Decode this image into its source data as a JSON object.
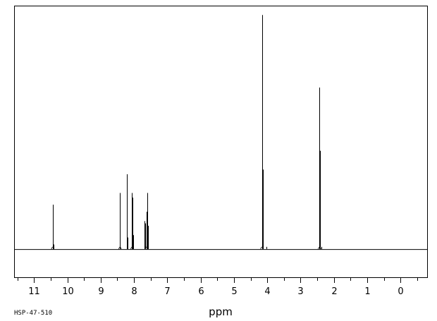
{
  "chart_data": {
    "type": "line",
    "title": "",
    "xlabel": "ppm",
    "ylabel": "",
    "xlim": [
      11.6,
      -0.8
    ],
    "x_reversed": true,
    "ylim": [
      -0.12,
      1.04
    ],
    "grid": false,
    "legend": "none",
    "ticks": {
      "major": [
        11,
        10,
        9,
        8,
        7,
        6,
        5,
        4,
        3,
        2,
        1,
        0
      ],
      "major_labels": [
        "11",
        "10",
        "9",
        "8",
        "7",
        "6",
        "5",
        "4",
        "3",
        "2",
        "1",
        "0"
      ],
      "minor": [
        11.5,
        10.5,
        9.5,
        8.5,
        7.5,
        6.5,
        5.5,
        4.5,
        3.5,
        2.5,
        1.5,
        0.5,
        -0.5
      ]
    },
    "baseline": 0,
    "peaks": [
      {
        "ppm": 10.44,
        "height": 0.19
      },
      {
        "ppm": 10.42,
        "height": 0.02
      },
      {
        "ppm": 8.42,
        "height": 0.24
      },
      {
        "ppm": 8.21,
        "height": 0.32
      },
      {
        "ppm": 8.19,
        "height": 0.05
      },
      {
        "ppm": 8.06,
        "height": 0.24
      },
      {
        "ppm": 8.04,
        "height": 0.22
      },
      {
        "ppm": 8.02,
        "height": 0.06
      },
      {
        "ppm": 7.69,
        "height": 0.12
      },
      {
        "ppm": 7.66,
        "height": 0.11
      },
      {
        "ppm": 7.63,
        "height": 0.16
      },
      {
        "ppm": 7.61,
        "height": 0.24
      },
      {
        "ppm": 7.58,
        "height": 0.1
      },
      {
        "ppm": 4.16,
        "height": 1.0
      },
      {
        "ppm": 4.14,
        "height": 0.34
      },
      {
        "ppm": 4.03,
        "height": 0.01
      },
      {
        "ppm": 2.43,
        "height": 0.69
      },
      {
        "ppm": 2.41,
        "height": 0.42
      },
      {
        "ppm": 2.38,
        "height": 0.01
      }
    ]
  },
  "footer": {
    "code": "HSP-47-510"
  },
  "colors": {
    "line": "#000000",
    "background": "#ffffff"
  }
}
